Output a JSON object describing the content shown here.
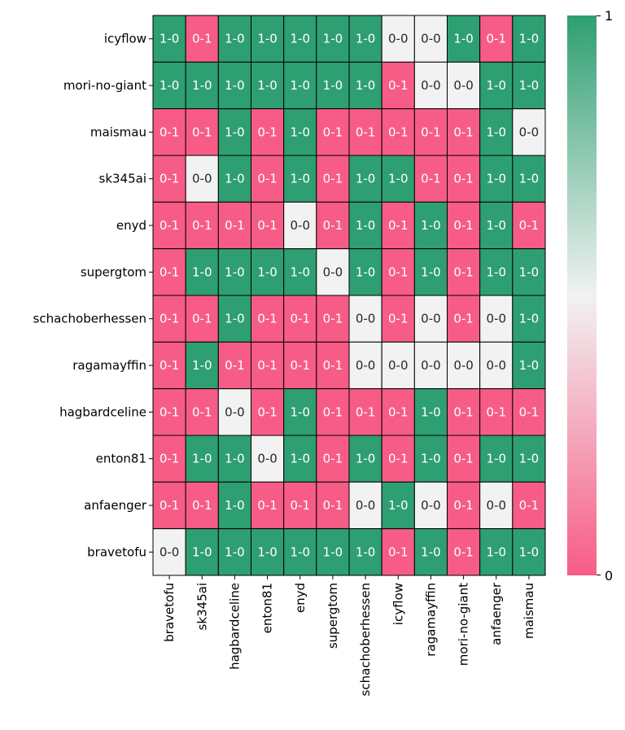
{
  "chart_data": {
    "type": "heatmap",
    "title": "",
    "xlabel": "",
    "ylabel": "",
    "rows": [
      "icyflow",
      "mori-no-giant",
      "maismau",
      "sk345ai",
      "enyd",
      "supergtom",
      "schachoberhessen",
      "ragamayffin",
      "hagbardceline",
      "enton81",
      "anfaenger",
      "bravetofu"
    ],
    "columns": [
      "bravetofu",
      "sk345ai",
      "hagbardceline",
      "enton81",
      "enyd",
      "supergtom",
      "schachoberhessen",
      "icyflow",
      "ragamayffin",
      "mori-no-giant",
      "anfaenger",
      "maismau"
    ],
    "cells": [
      [
        "1-0",
        "0-1",
        "1-0",
        "1-0",
        "1-0",
        "1-0",
        "1-0",
        "0-0",
        "0-0",
        "1-0",
        "0-1",
        "1-0"
      ],
      [
        "1-0",
        "1-0",
        "1-0",
        "1-0",
        "1-0",
        "1-0",
        "1-0",
        "0-1",
        "0-0",
        "0-0",
        "1-0",
        "1-0"
      ],
      [
        "0-1",
        "0-1",
        "1-0",
        "0-1",
        "1-0",
        "0-1",
        "0-1",
        "0-1",
        "0-1",
        "0-1",
        "1-0",
        "0-0"
      ],
      [
        "0-1",
        "0-0",
        "1-0",
        "0-1",
        "1-0",
        "0-1",
        "1-0",
        "1-0",
        "0-1",
        "0-1",
        "1-0",
        "1-0"
      ],
      [
        "0-1",
        "0-1",
        "0-1",
        "0-1",
        "0-0",
        "0-1",
        "1-0",
        "0-1",
        "1-0",
        "0-1",
        "1-0",
        "0-1"
      ],
      [
        "0-1",
        "1-0",
        "1-0",
        "1-0",
        "1-0",
        "0-0",
        "1-0",
        "0-1",
        "1-0",
        "0-1",
        "1-0",
        "1-0"
      ],
      [
        "0-1",
        "0-1",
        "1-0",
        "0-1",
        "0-1",
        "0-1",
        "0-0",
        "0-1",
        "0-0",
        "0-1",
        "0-0",
        "1-0"
      ],
      [
        "0-1",
        "1-0",
        "0-1",
        "0-1",
        "0-1",
        "0-1",
        "0-0",
        "0-0",
        "0-0",
        "0-0",
        "0-0",
        "1-0"
      ],
      [
        "0-1",
        "0-1",
        "0-0",
        "0-1",
        "1-0",
        "0-1",
        "0-1",
        "0-1",
        "1-0",
        "0-1",
        "0-1",
        "0-1"
      ],
      [
        "0-1",
        "1-0",
        "1-0",
        "0-0",
        "1-0",
        "0-1",
        "1-0",
        "0-1",
        "1-0",
        "0-1",
        "1-0",
        "1-0"
      ],
      [
        "0-1",
        "0-1",
        "1-0",
        "0-1",
        "0-1",
        "0-1",
        "0-0",
        "1-0",
        "0-0",
        "0-1",
        "0-0",
        "0-1"
      ],
      [
        "0-0",
        "1-0",
        "1-0",
        "1-0",
        "1-0",
        "1-0",
        "1-0",
        "0-1",
        "1-0",
        "0-1",
        "1-0",
        "1-0"
      ]
    ],
    "value_map": {
      "1-0": 1,
      "0-0": 0.5,
      "0-1": 0
    },
    "colorbar": {
      "min": 0,
      "max": 1,
      "ticks": [
        "0",
        "1"
      ]
    },
    "colors": {
      "high": "#2e9f72",
      "mid": "#f1f2f1",
      "low": "#f75c87"
    }
  }
}
